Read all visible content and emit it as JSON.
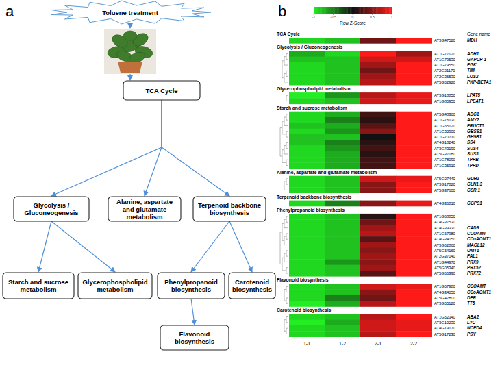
{
  "panel_a": {
    "label": "a",
    "nodes": [
      {
        "label": "Toluene treatment"
      },
      {
        "label": "TCA Cycle"
      },
      {
        "label": "Glycolysis / Gluconeogenesis"
      },
      {
        "label": "Alanine, aspartate and glutamate metabolism"
      },
      {
        "label": "Terpenoid backbone biosynthesis"
      },
      {
        "label": "Starch and sucrose metabolism"
      },
      {
        "label": "Glycerophospholipid metabolism"
      },
      {
        "label": "Phenylpropanoid biosynthesis"
      },
      {
        "label": "Carotenoid biosynthesis"
      },
      {
        "label": "Flavonoid biosynthesis"
      }
    ],
    "edges": [
      [
        0,
        1
      ],
      [
        1,
        2
      ],
      [
        1,
        3
      ],
      [
        1,
        4
      ],
      [
        2,
        5
      ],
      [
        2,
        6
      ],
      [
        4,
        7
      ],
      [
        4,
        8
      ],
      [
        7,
        9
      ]
    ]
  },
  "chart_data": {
    "type": "heatmap",
    "label": "b",
    "header": "Gene name",
    "columns": [
      "1-1",
      "1-2",
      "2-1",
      "2-2"
    ],
    "colorbar": {
      "title": "Row Z-Score",
      "range": [
        -1,
        1
      ],
      "ticks": [
        -1,
        -0.5,
        0,
        0.5,
        1
      ],
      "colors": [
        "#22ee22",
        "#111111",
        "#ff1a1a"
      ]
    },
    "groups": [
      {
        "name": "TCA Cycle",
        "rows": [
          {
            "gene_id": "AT3G47520",
            "gene_name": "MDH",
            "values": [
              -0.9,
              -0.8,
              0.4,
              1.0
            ]
          }
        ]
      },
      {
        "name": "Glycolysis / Gluconeogenesis",
        "rows": [
          {
            "gene_id": "AT1G77120",
            "gene_name": "ADH1",
            "values": [
              -0.7,
              -0.9,
              1.0,
              0.6
            ]
          },
          {
            "gene_id": "AT1G79530",
            "gene_name": "GAPCP-1",
            "values": [
              -0.8,
              -0.8,
              0.8,
              0.8
            ]
          },
          {
            "gene_id": "AT1G79550",
            "gene_name": "PGK",
            "values": [
              -0.9,
              -0.8,
              0.6,
              1.0
            ]
          },
          {
            "gene_id": "AT2G21170",
            "gene_name": "TIM",
            "values": [
              -0.9,
              -0.8,
              0.4,
              1.0
            ]
          },
          {
            "gene_id": "AT2G36530",
            "gene_name": "LOS2",
            "values": [
              -0.9,
              -0.8,
              0.6,
              1.0
            ]
          },
          {
            "gene_id": "AT5G52920",
            "gene_name": "PKP-BETA1",
            "values": [
              -0.9,
              -0.8,
              0.7,
              1.0
            ]
          }
        ]
      },
      {
        "name": "Glycerophospholipid metabolism",
        "rows": [
          {
            "gene_id": "AT3G18850",
            "gene_name": "LPAT5",
            "values": [
              -1.0,
              -0.6,
              0.7,
              0.9
            ]
          },
          {
            "gene_id": "AT1G80950",
            "gene_name": "LPEAT1",
            "values": [
              -0.9,
              -0.8,
              0.8,
              0.9
            ]
          }
        ]
      },
      {
        "name": "Starch and sucrose metabolism",
        "rows": [
          {
            "gene_id": "AT5G48300",
            "gene_name": "ADG1",
            "values": [
              -0.9,
              -0.7,
              0.2,
              1.0
            ]
          },
          {
            "gene_id": "AT1G76130",
            "gene_name": "AMY2",
            "values": [
              -0.9,
              -0.5,
              0.1,
              1.0
            ]
          },
          {
            "gene_id": "AT1G55120",
            "gene_name": "FRUCT5",
            "values": [
              -0.8,
              -0.7,
              0.3,
              1.0
            ]
          },
          {
            "gene_id": "AT1G32900",
            "gene_name": "GBSS1",
            "values": [
              -0.9,
              -0.6,
              0.5,
              1.0
            ]
          },
          {
            "gene_id": "AT1G70710",
            "gene_name": "GH9B1",
            "values": [
              -0.8,
              -0.8,
              0.0,
              1.0
            ]
          },
          {
            "gene_id": "AT4G18240",
            "gene_name": "SS4",
            "values": [
              -0.8,
              -0.5,
              0.1,
              1.0
            ]
          },
          {
            "gene_id": "AT3G43190",
            "gene_name": "SUS4",
            "values": [
              -0.9,
              -0.6,
              0.2,
              1.0
            ]
          },
          {
            "gene_id": "AT5G37180",
            "gene_name": "SUS5",
            "values": [
              -0.9,
              -0.7,
              0.1,
              1.0
            ]
          },
          {
            "gene_id": "AT1G78090",
            "gene_name": "TPPB",
            "values": [
              -0.9,
              -0.7,
              0.2,
              1.0
            ]
          },
          {
            "gene_id": "AT1G35910",
            "gene_name": "TPPD",
            "values": [
              -0.9,
              -0.7,
              0.2,
              1.0
            ]
          }
        ]
      },
      {
        "name": "Alanine, aspartate and glutamate metabolism",
        "rows": [
          {
            "gene_id": "AT5G07440",
            "gene_name": "GDH2",
            "values": [
              -0.9,
              -0.8,
              0.8,
              0.9
            ]
          },
          {
            "gene_id": "AT3G17820",
            "gene_name": "GLN1.3",
            "values": [
              -0.9,
              -0.8,
              0.5,
              1.0
            ]
          },
          {
            "gene_id": "AT5G37600",
            "gene_name": "GSR 1",
            "values": [
              -0.9,
              -0.8,
              0.5,
              1.0
            ]
          }
        ]
      },
      {
        "name": "Terpenoid backbone biosynthesis",
        "rows": [
          {
            "gene_id": "AT4G36810",
            "gene_name": "GGPS1",
            "values": [
              -0.9,
              -0.5,
              0.5,
              0.9
            ]
          }
        ]
      },
      {
        "name": "Phenylpropanoid biosynthesis",
        "rows": [
          {
            "gene_id": "AT1G68850",
            "gene_name": null,
            "values": [
              -0.9,
              -0.8,
              0.1,
              1.0
            ]
          },
          {
            "gene_id": "AT4G37530",
            "gene_name": null,
            "values": [
              -0.9,
              -0.8,
              0.4,
              1.0
            ]
          },
          {
            "gene_id": "AT4G39330",
            "gene_name": "CAD9",
            "values": [
              -0.9,
              -0.8,
              0.6,
              1.0
            ]
          },
          {
            "gene_id": "AT1G67980",
            "gene_name": "CCOAMT",
            "values": [
              -0.9,
              -0.8,
              0.7,
              1.0
            ]
          },
          {
            "gene_id": "AT4G34050",
            "gene_name": "CCoAOMT1",
            "values": [
              -0.9,
              -0.8,
              0.3,
              1.0
            ]
          },
          {
            "gene_id": "AT3G62860",
            "gene_name": "MAGL12",
            "values": [
              -0.9,
              -0.8,
              0.6,
              1.0
            ]
          },
          {
            "gene_id": "AT5G54160",
            "gene_name": "OMT1",
            "values": [
              -0.9,
              -0.8,
              0.5,
              1.0
            ]
          },
          {
            "gene_id": "AT2G37040",
            "gene_name": "PAL1",
            "values": [
              -0.9,
              -0.8,
              0.6,
              1.0
            ]
          },
          {
            "gene_id": "AT1G44970",
            "gene_name": "PRX9",
            "values": [
              -0.9,
              -0.6,
              0.5,
              1.0
            ]
          },
          {
            "gene_id": "AT5G05340",
            "gene_name": "PRX52",
            "values": [
              -0.9,
              -0.8,
              0.6,
              1.0
            ]
          },
          {
            "gene_id": "AT5G66390",
            "gene_name": "PRX72",
            "values": [
              -0.9,
              -0.8,
              0.3,
              1.0
            ]
          }
        ]
      },
      {
        "name": "Flavonoid biosynthesis",
        "rows": [
          {
            "gene_id": "AT1G67980",
            "gene_name": "CCOAMT",
            "values": [
              -0.9,
              -0.8,
              0.8,
              0.9
            ]
          },
          {
            "gene_id": "AT4G34050",
            "gene_name": "CCoAOMT1",
            "values": [
              -0.9,
              -0.8,
              0.5,
              1.0
            ]
          },
          {
            "gene_id": "AT5G42800",
            "gene_name": "DFR",
            "values": [
              -0.9,
              -0.5,
              0.4,
              1.0
            ]
          },
          {
            "gene_id": "AT3G55120",
            "gene_name": "TT5",
            "values": [
              -1.0,
              -0.7,
              0.7,
              1.0
            ]
          }
        ]
      },
      {
        "name": "Carotenoid biosynthesis",
        "rows": [
          {
            "gene_id": "AT1G52340",
            "gene_name": "ABA2",
            "values": [
              -0.9,
              -0.8,
              0.7,
              1.0
            ]
          },
          {
            "gene_id": "AT3G10230",
            "gene_name": "LYC",
            "values": [
              -1.0,
              -0.7,
              0.8,
              0.9
            ]
          },
          {
            "gene_id": "AT4G19170",
            "gene_name": "NCED4",
            "values": [
              -0.9,
              -0.8,
              0.8,
              0.9
            ]
          },
          {
            "gene_id": "AT5G17230",
            "gene_name": "PSY",
            "values": [
              -0.9,
              -0.8,
              0.7,
              1.0
            ]
          }
        ]
      }
    ]
  }
}
